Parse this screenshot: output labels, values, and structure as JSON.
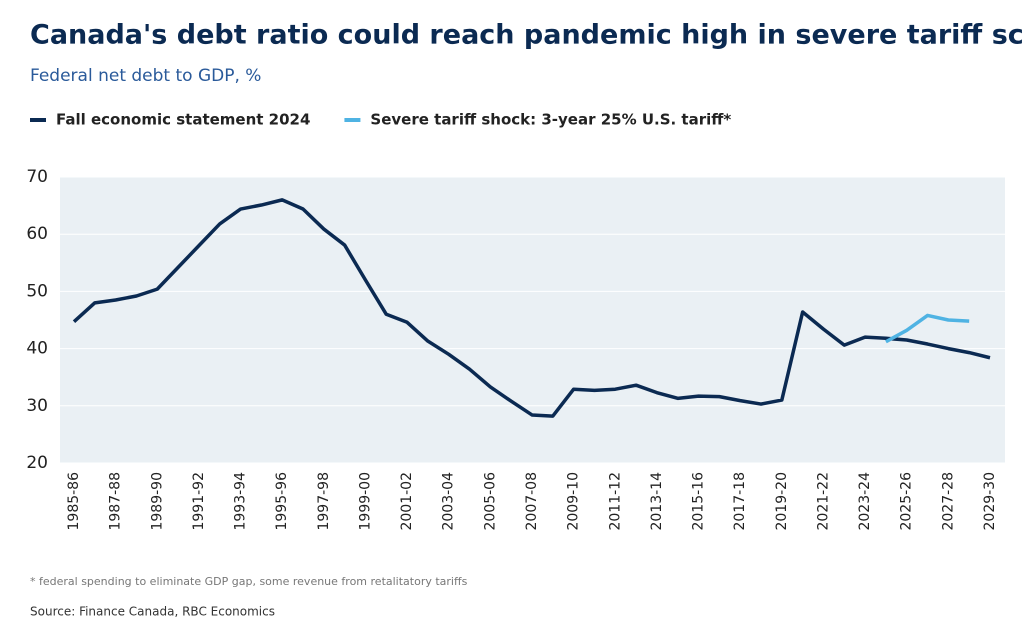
{
  "chart_data": {
    "type": "line",
    "title": "Canada's debt ratio could reach pandemic high in severe tariff scenario",
    "subtitle": "Federal net debt to GDP, %",
    "footnote": "* federal spending to eliminate GDP gap, some revenue from retalitatory tariffs",
    "source": "Source: Finance Canada, RBC Economics",
    "categories": [
      "1985-86",
      null,
      "1987-88",
      null,
      "1989-90",
      null,
      "1991-92",
      null,
      "1993-94",
      null,
      "1995-96",
      null,
      "1997-98",
      null,
      "1999-00",
      null,
      "2001-02",
      null,
      "2003-04",
      null,
      "2005-06",
      null,
      "2007-08",
      null,
      "2009-10",
      null,
      "2011-12",
      null,
      "2013-14",
      null,
      "2015-16",
      null,
      "2017-18",
      null,
      "2019-20",
      null,
      "2021-22",
      null,
      "2023-24",
      null,
      "2025-26",
      null,
      "2027-28",
      null,
      "2029-30"
    ],
    "series": [
      {
        "name": "Fall economic statement 2024",
        "color": "#0b2a52",
        "values": [
          44.7,
          48.0,
          48.5,
          49.2,
          50.4,
          54.2,
          58.0,
          61.8,
          64.4,
          65.1,
          66.0,
          64.4,
          60.9,
          58.1,
          52.0,
          46.0,
          44.6,
          41.3,
          39.0,
          36.4,
          33.3,
          30.8,
          28.4,
          28.2,
          32.9,
          32.7,
          32.9,
          33.6,
          32.3,
          31.3,
          31.7,
          31.6,
          30.9,
          30.3,
          31.0,
          46.4,
          43.4,
          40.6,
          42.0,
          41.8,
          41.5,
          40.8,
          40.0,
          39.3,
          38.4
        ]
      },
      {
        "name": "Severe tariff shock: 3-year 25% U.S. tariff*",
        "color": "#4fb3e3",
        "values": [
          null,
          null,
          null,
          null,
          null,
          null,
          null,
          null,
          null,
          null,
          null,
          null,
          null,
          null,
          null,
          null,
          null,
          null,
          null,
          null,
          null,
          null,
          null,
          null,
          null,
          null,
          null,
          null,
          null,
          null,
          null,
          null,
          null,
          null,
          null,
          null,
          null,
          null,
          null,
          41.2,
          43.2,
          45.8,
          45.0,
          44.8,
          null
        ]
      }
    ],
    "ylim": [
      20,
      70
    ],
    "yticks": [
      20,
      30,
      40,
      50,
      60,
      70
    ],
    "grid": true
  }
}
